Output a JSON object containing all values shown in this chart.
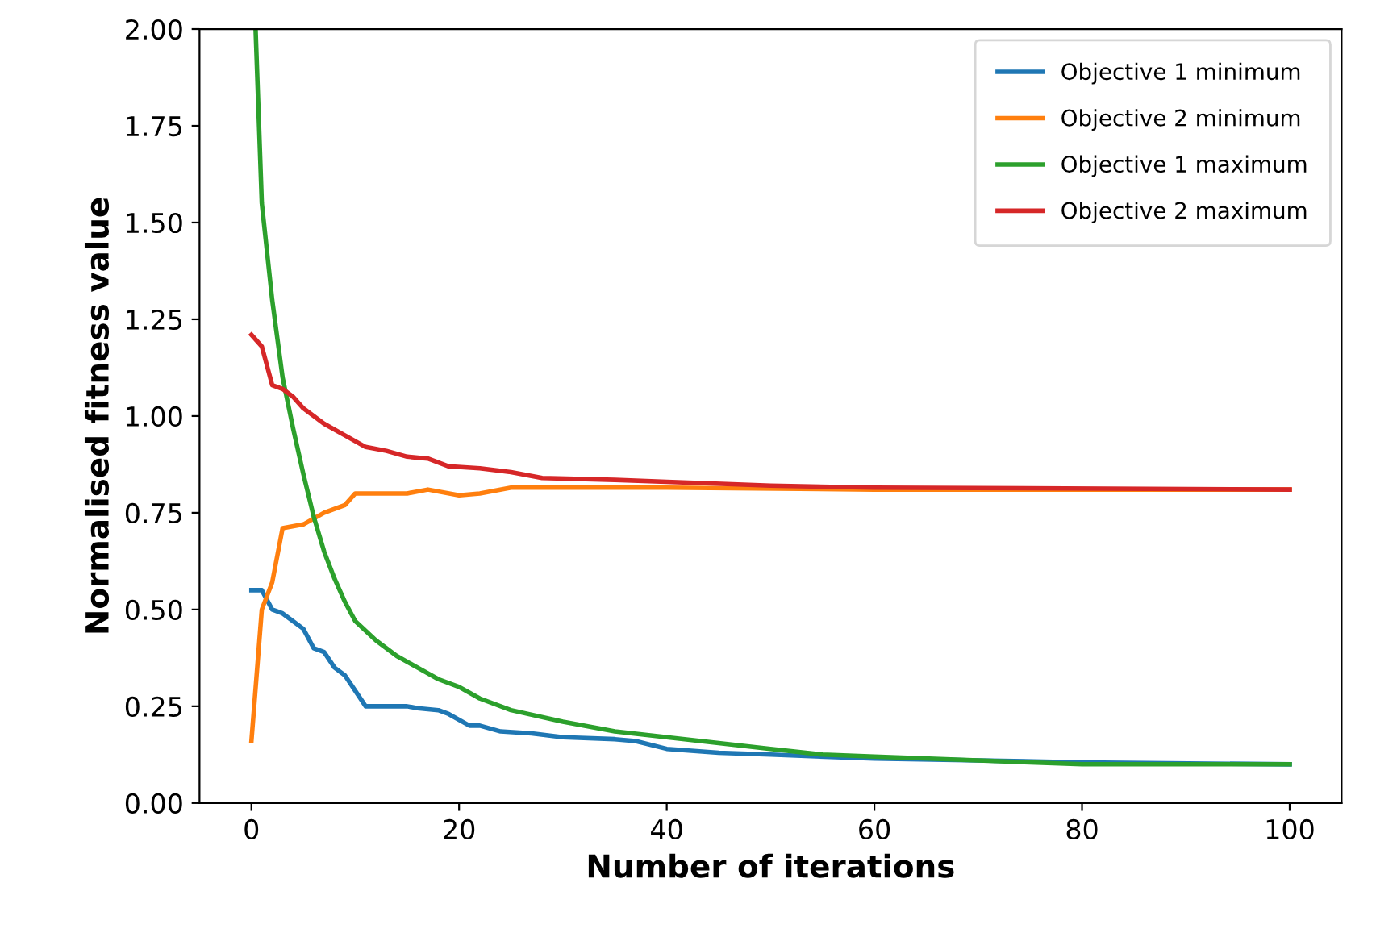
{
  "chart_data": {
    "type": "line",
    "xlabel": "Number of iterations",
    "ylabel": "Normalised fitness value",
    "xlim": [
      -5,
      105
    ],
    "ylim": [
      0,
      2.0
    ],
    "xticks": [
      0,
      20,
      40,
      60,
      80,
      100
    ],
    "yticks": [
      {
        "value": 0,
        "label": "0.00"
      },
      {
        "value": 0.25,
        "label": "0.25"
      },
      {
        "value": 0.5,
        "label": "0.50"
      },
      {
        "value": 0.75,
        "label": "0.75"
      },
      {
        "value": 1.0,
        "label": "1.00"
      },
      {
        "value": 1.25,
        "label": "1.25"
      },
      {
        "value": 1.5,
        "label": "1.50"
      },
      {
        "value": 1.75,
        "label": "1.75"
      },
      {
        "value": 2.0,
        "label": "2.00"
      }
    ],
    "grid": false,
    "legend": "top right",
    "series": [
      {
        "name": "Objective 1 minimum",
        "color": "#1f77b4",
        "x": [
          0,
          1,
          2,
          3,
          4,
          5,
          6,
          7,
          8,
          9,
          10,
          11,
          15,
          16,
          18,
          19,
          21,
          22,
          24,
          27,
          30,
          35,
          37,
          40,
          45,
          50,
          60,
          70,
          80,
          100
        ],
        "values": [
          0.55,
          0.55,
          0.5,
          0.49,
          0.47,
          0.45,
          0.4,
          0.39,
          0.35,
          0.33,
          0.29,
          0.25,
          0.25,
          0.245,
          0.24,
          0.23,
          0.2,
          0.2,
          0.185,
          0.18,
          0.17,
          0.165,
          0.16,
          0.14,
          0.13,
          0.125,
          0.115,
          0.11,
          0.105,
          0.1
        ]
      },
      {
        "name": "Objective 2 minimum",
        "color": "#ff7f0e",
        "x": [
          0,
          1,
          2,
          3,
          5,
          7,
          9,
          10,
          15,
          17,
          20,
          22,
          25,
          40,
          60,
          100
        ],
        "values": [
          0.16,
          0.5,
          0.57,
          0.71,
          0.72,
          0.75,
          0.77,
          0.8,
          0.8,
          0.81,
          0.795,
          0.8,
          0.815,
          0.815,
          0.81,
          0.81
        ]
      },
      {
        "name": "Objective 1 maximum",
        "color": "#2ca02c",
        "x": [
          0.4,
          1,
          2,
          3,
          4,
          5,
          6,
          7,
          8,
          9,
          10,
          12,
          14,
          16,
          18,
          20,
          22,
          25,
          30,
          35,
          40,
          45,
          50,
          55,
          60,
          70,
          80,
          100
        ],
        "values": [
          2.0,
          1.55,
          1.3,
          1.1,
          0.97,
          0.85,
          0.74,
          0.65,
          0.58,
          0.52,
          0.47,
          0.42,
          0.38,
          0.35,
          0.32,
          0.3,
          0.27,
          0.24,
          0.21,
          0.185,
          0.17,
          0.155,
          0.14,
          0.125,
          0.12,
          0.11,
          0.1,
          0.1
        ]
      },
      {
        "name": "Objective 2 maximum",
        "color": "#d62728",
        "x": [
          0,
          1,
          2,
          3,
          4,
          5,
          7,
          9,
          11,
          13,
          15,
          17,
          19,
          22,
          25,
          28,
          35,
          40,
          50,
          60,
          100
        ],
        "values": [
          1.21,
          1.18,
          1.08,
          1.07,
          1.05,
          1.02,
          0.98,
          0.95,
          0.92,
          0.91,
          0.895,
          0.89,
          0.87,
          0.865,
          0.855,
          0.84,
          0.835,
          0.83,
          0.82,
          0.815,
          0.81
        ]
      }
    ]
  }
}
